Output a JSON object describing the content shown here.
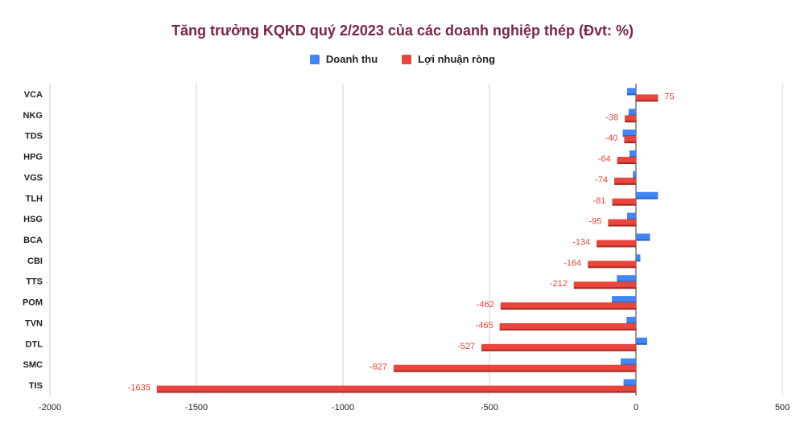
{
  "chart_data": {
    "type": "bar",
    "orientation": "horizontal",
    "title": "Tăng trưởng KQKD quý 2/2023 của các doanh nghiệp thép (Đvt: %)",
    "categories": [
      "VCA",
      "NKG",
      "TDS",
      "HPG",
      "VGS",
      "TLH",
      "HSG",
      "BCA",
      "CBI",
      "TTS",
      "POM",
      "TVN",
      "DTL",
      "SMC",
      "TIS"
    ],
    "series": [
      {
        "name": "Doanh thu",
        "color": "#4285f4",
        "values": [
          -30,
          -25,
          -45,
          -22,
          -10,
          75,
          -30,
          48,
          15,
          -65,
          -82,
          -32,
          38,
          -52,
          -42
        ]
      },
      {
        "name": "Lợi nhuận ròng",
        "color": "#e8453c",
        "values": [
          75,
          -38,
          -40,
          -64,
          -74,
          -81,
          -95,
          -134,
          -164,
          -212,
          -462,
          -465,
          -527,
          -827,
          -1635
        ],
        "labels": [
          "75",
          "-38",
          "-40",
          "-64",
          "-74",
          "-81",
          "-95",
          "-134",
          "-164",
          "-212",
          "-462",
          "-465",
          "-527",
          "-827",
          "-1635"
        ]
      }
    ],
    "xlim": [
      -2000,
      500
    ],
    "xticks": [
      "-2000",
      "-1500",
      "-1000",
      "-500",
      "0",
      "500"
    ],
    "xtick_values": [
      -2000,
      -1500,
      -1000,
      -500,
      0,
      500
    ],
    "grid": true,
    "legend": "top-center"
  }
}
